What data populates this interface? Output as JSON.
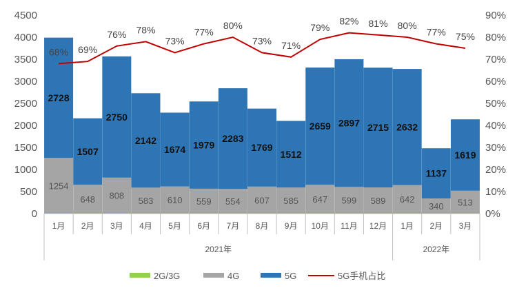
{
  "chart_data": {
    "type": "bar",
    "stacked": true,
    "categories": [
      "1月",
      "2月",
      "3月",
      "4月",
      "5月",
      "6月",
      "7月",
      "8月",
      "9月",
      "10月",
      "11月",
      "12月",
      "1月",
      "2月",
      "3月"
    ],
    "year_groups": [
      {
        "label": "2021年",
        "start": 0,
        "end": 11
      },
      {
        "label": "2022年",
        "start": 12,
        "end": 14
      }
    ],
    "series": [
      {
        "name": "2G/3G",
        "color": "#92d050",
        "values": [
          8,
          6,
          7,
          5,
          5,
          5,
          5,
          5,
          5,
          6,
          5,
          5,
          6,
          4,
          5
        ],
        "show_labels": false
      },
      {
        "name": "4G",
        "color": "#a5a5a5",
        "values": [
          1254,
          648,
          808,
          583,
          610,
          559,
          554,
          607,
          585,
          647,
          599,
          589,
          642,
          340,
          513
        ],
        "show_labels": true
      },
      {
        "name": "5G",
        "color": "#2e75b6",
        "values": [
          2728,
          1507,
          2750,
          2142,
          1674,
          1979,
          2283,
          1769,
          1512,
          2659,
          2897,
          2715,
          2632,
          1137,
          1619
        ],
        "show_labels": true
      }
    ],
    "line_series": {
      "name": "5G手机占比",
      "color": "#c00000",
      "values": [
        68,
        69,
        76,
        78,
        73,
        77,
        80,
        73,
        71,
        79,
        82,
        81,
        80,
        77,
        75
      ],
      "labels": [
        "68%",
        "69%",
        "76%",
        "78%",
        "73%",
        "77%",
        "80%",
        "73%",
        "71%",
        "79%",
        "82%",
        "81%",
        "80%",
        "77%",
        "75%"
      ]
    },
    "ylim_left": [
      0,
      4500
    ],
    "ylim_right": [
      0,
      90
    ],
    "yticks_left": [
      "0",
      "500",
      "1000",
      "1500",
      "2000",
      "2500",
      "3000",
      "3500",
      "4000",
      "4500"
    ],
    "yticks_right": [
      "0%",
      "10%",
      "20%",
      "30%",
      "40%",
      "50%",
      "60%",
      "70%",
      "80%",
      "90%"
    ],
    "legend": {
      "placement": "bottom",
      "items": [
        {
          "label": "2G/3G",
          "kind": "bar",
          "color": "#92d050"
        },
        {
          "label": "4G",
          "kind": "bar",
          "color": "#a5a5a5"
        },
        {
          "label": "5G",
          "kind": "bar",
          "color": "#2e75b6"
        },
        {
          "label": "5G手机占比",
          "kind": "line",
          "color": "#c00000"
        }
      ]
    },
    "grid": false
  }
}
